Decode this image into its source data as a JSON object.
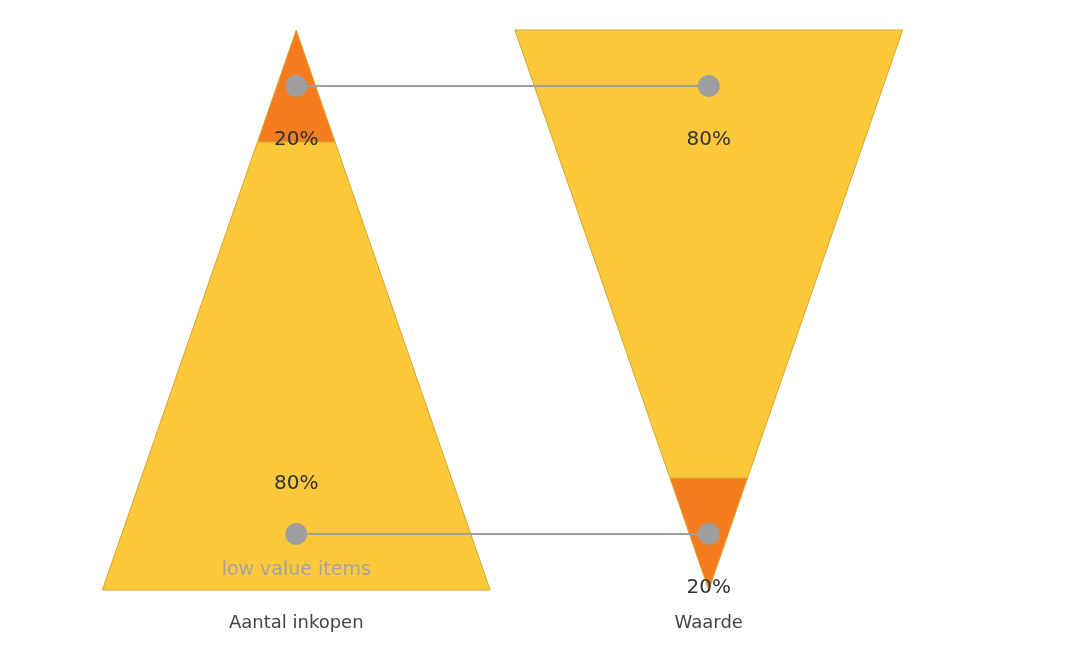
{
  "chart_data": {
    "type": "other",
    "categories": [
      "Aantal inkopen",
      "Waarde"
    ],
    "series": [
      {
        "color": "#f57c1f",
        "values": [
          20,
          20
        ],
        "value_labels": [
          "20%",
          "20%"
        ]
      },
      {
        "color": "#fdc93b",
        "values": [
          80,
          80
        ],
        "value_labels": [
          "80%",
          "80%"
        ]
      }
    ],
    "annotations": [
      "low value items"
    ]
  }
}
